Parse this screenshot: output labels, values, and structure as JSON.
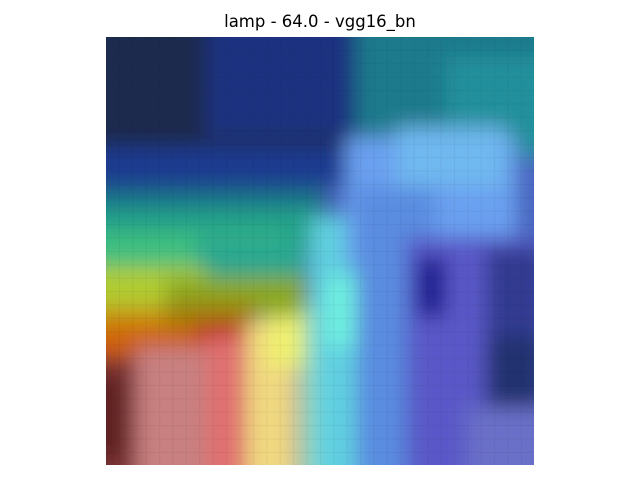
{
  "figure": {
    "title": "lamp - 64.0 - vgg16_bn"
  },
  "image": {
    "description_icon": "heatmap-overlay-image",
    "colors": {
      "dark_navy": "#1f2b4e",
      "deep_blue": "#1d3a8a",
      "teal": "#1a7f8f",
      "cyan": "#5fd8e0",
      "light_blue": "#6aa0f0",
      "violet": "#5b55c8",
      "green": "#3cc07a",
      "yellow": "#d8d030",
      "orange": "#d87010",
      "red": "#c03010",
      "pink": "#e88080",
      "pale_yellow": "#f0f090",
      "dark_red": "#7a2020"
    }
  }
}
